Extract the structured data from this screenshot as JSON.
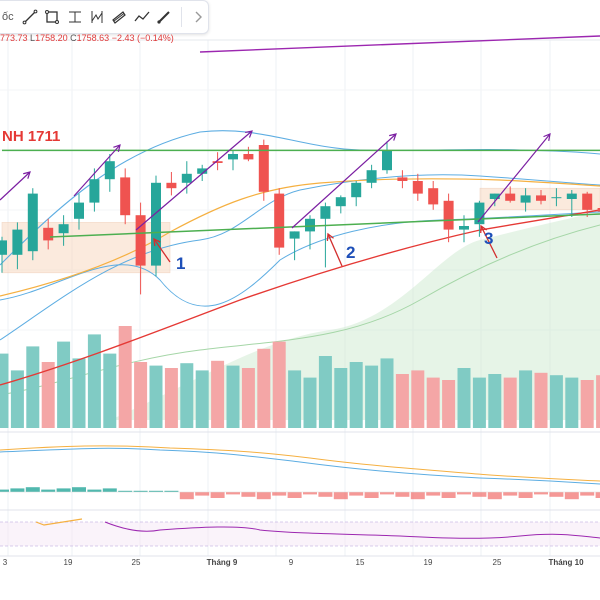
{
  "toolbar": {
    "cut_text": "ốc",
    "tools": [
      {
        "name": "trend-line-icon"
      },
      {
        "name": "rectangle-icon"
      },
      {
        "name": "fib-icon"
      },
      {
        "name": "pitchfork-icon"
      },
      {
        "name": "channel-icon"
      },
      {
        "name": "path-icon"
      },
      {
        "name": "brush-icon"
      }
    ],
    "more": "expand-icon"
  },
  "ohlc": {
    "h_value": "773.73",
    "l_label": "L",
    "l_value": "1758.20",
    "c_label": "C",
    "c_value": "1758.63",
    "change": "−2.43 (−0.14%)"
  },
  "colors": {
    "up": "#26a69a",
    "down": "#ef5350",
    "trend_green": "#4caf50",
    "ma_red": "#e53935",
    "ma_orange": "#f5b041",
    "bb_blue": "#5dade2",
    "purple": "#9c27b0",
    "arrow": "#7b1fa2",
    "pointer": "#d32f2f",
    "number_blue": "#1e4fb8",
    "cloud": "#c8e6c9",
    "vol_up": "#80cbc4",
    "vol_down": "#f4a6a6"
  },
  "chart_data": {
    "type": "candlestick",
    "level_label": "NH 1711",
    "markers": [
      "1",
      "2",
      "3"
    ],
    "x_labels": [
      "3",
      "19",
      "25",
      "Tháng 9",
      "9",
      "15",
      "19",
      "25",
      "Tháng 10"
    ],
    "candles": [
      {
        "o": 1734,
        "h": 1744,
        "l": 1724,
        "c": 1742
      },
      {
        "o": 1734,
        "h": 1752,
        "l": 1726,
        "c": 1748
      },
      {
        "o": 1736,
        "h": 1771,
        "l": 1731,
        "c": 1768
      },
      {
        "o": 1749,
        "h": 1754,
        "l": 1737,
        "c": 1742
      },
      {
        "o": 1746,
        "h": 1756,
        "l": 1739,
        "c": 1751
      },
      {
        "o": 1754,
        "h": 1768,
        "l": 1748,
        "c": 1763
      },
      {
        "o": 1763,
        "h": 1782,
        "l": 1758,
        "c": 1776
      },
      {
        "o": 1776,
        "h": 1790,
        "l": 1769,
        "c": 1786
      },
      {
        "o": 1777,
        "h": 1782,
        "l": 1751,
        "c": 1756
      },
      {
        "o": 1756,
        "h": 1763,
        "l": 1712,
        "c": 1728
      },
      {
        "o": 1728,
        "h": 1778,
        "l": 1722,
        "c": 1774
      },
      {
        "o": 1774,
        "h": 1780,
        "l": 1767,
        "c": 1771
      },
      {
        "o": 1774,
        "h": 1786,
        "l": 1768,
        "c": 1779
      },
      {
        "o": 1779,
        "h": 1784,
        "l": 1775,
        "c": 1782
      },
      {
        "o": 1786,
        "h": 1791,
        "l": 1781,
        "c": 1785
      },
      {
        "o": 1787,
        "h": 1792,
        "l": 1781,
        "c": 1790
      },
      {
        "o": 1790,
        "h": 1794,
        "l": 1786,
        "c": 1787
      },
      {
        "o": 1795,
        "h": 1798,
        "l": 1764,
        "c": 1769
      },
      {
        "o": 1768,
        "h": 1771,
        "l": 1734,
        "c": 1738
      },
      {
        "o": 1743,
        "h": 1747,
        "l": 1731,
        "c": 1747
      },
      {
        "o": 1747,
        "h": 1756,
        "l": 1737,
        "c": 1754
      },
      {
        "o": 1754,
        "h": 1763,
        "l": 1727,
        "c": 1761
      },
      {
        "o": 1761,
        "h": 1767,
        "l": 1757,
        "c": 1766
      },
      {
        "o": 1766,
        "h": 1775,
        "l": 1761,
        "c": 1774
      },
      {
        "o": 1774,
        "h": 1784,
        "l": 1771,
        "c": 1781
      },
      {
        "o": 1781,
        "h": 1797,
        "l": 1779,
        "c": 1792
      },
      {
        "o": 1777,
        "h": 1781,
        "l": 1771,
        "c": 1775
      },
      {
        "o": 1775,
        "h": 1779,
        "l": 1764,
        "c": 1768
      },
      {
        "o": 1771,
        "h": 1775,
        "l": 1759,
        "c": 1762
      },
      {
        "o": 1764,
        "h": 1768,
        "l": 1741,
        "c": 1748
      },
      {
        "o": 1748,
        "h": 1756,
        "l": 1741,
        "c": 1750
      },
      {
        "o": 1751,
        "h": 1764,
        "l": 1744,
        "c": 1763
      },
      {
        "o": 1765,
        "h": 1768,
        "l": 1761,
        "c": 1768
      },
      {
        "o": 1768,
        "h": 1772,
        "l": 1763,
        "c": 1764
      },
      {
        "o": 1763,
        "h": 1771,
        "l": 1758,
        "c": 1767
      },
      {
        "o": 1767,
        "h": 1770,
        "l": 1762,
        "c": 1764
      },
      {
        "o": 1766,
        "h": 1771,
        "l": 1761,
        "c": 1766
      },
      {
        "o": 1765,
        "h": 1770,
        "l": 1755,
        "c": 1768
      },
      {
        "o": 1768,
        "h": 1769,
        "l": 1755,
        "c": 1759
      },
      {
        "o": 1760,
        "h": 1766,
        "l": 1756,
        "c": 1758
      }
    ],
    "volume": [
      62,
      48,
      68,
      55,
      72,
      58,
      78,
      62,
      85,
      55,
      52,
      50,
      54,
      48,
      56,
      52,
      50,
      66,
      72,
      48,
      42,
      60,
      50,
      55,
      52,
      58,
      45,
      48,
      42,
      40,
      50,
      42,
      45,
      42,
      48,
      46,
      44,
      42,
      40,
      44
    ],
    "resistance_top": 1792,
    "ylim": [
      1560,
      1840
    ]
  }
}
